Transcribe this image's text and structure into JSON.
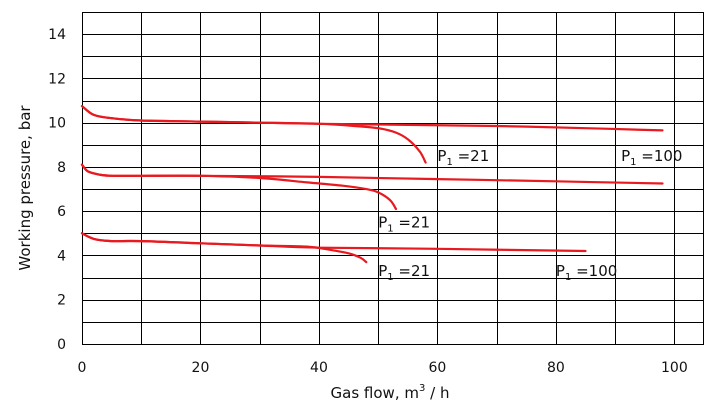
{
  "chart_data": {
    "type": "line",
    "xlabel": {
      "main": "Gas flow, m",
      "sup": "3",
      "rest": " / h"
    },
    "ylabel": "Working pressure, bar",
    "xlim": [
      0,
      105
    ],
    "ylim": [
      0,
      15
    ],
    "x_ticks": [
      0,
      20,
      40,
      60,
      80,
      100
    ],
    "y_ticks": [
      0,
      2,
      4,
      6,
      8,
      10,
      12,
      14
    ],
    "grid": true,
    "grid_x_step": 10,
    "grid_y_step": 1,
    "line_color": "#e8191f",
    "series": [
      {
        "x": [
          0,
          2,
          5,
          10,
          20,
          30,
          40,
          55,
          70,
          85,
          98
        ],
        "y": [
          10.75,
          10.35,
          10.2,
          10.1,
          10.05,
          10.0,
          9.95,
          9.9,
          9.85,
          9.75,
          9.65
        ]
      },
      {
        "x": [
          0,
          2,
          5,
          10,
          20,
          30,
          40,
          46,
          50,
          53,
          55,
          57,
          58
        ],
        "y": [
          10.75,
          10.35,
          10.2,
          10.1,
          10.05,
          10.0,
          9.95,
          9.85,
          9.75,
          9.55,
          9.25,
          8.7,
          8.2
        ]
      },
      {
        "x": [
          0,
          1,
          3,
          5,
          10,
          20,
          40,
          60,
          80,
          98
        ],
        "y": [
          8.1,
          7.8,
          7.65,
          7.6,
          7.6,
          7.6,
          7.55,
          7.45,
          7.35,
          7.25
        ]
      },
      {
        "x": [
          0,
          1,
          3,
          5,
          10,
          20,
          30,
          38,
          44,
          48,
          50,
          52,
          53
        ],
        "y": [
          8.1,
          7.8,
          7.65,
          7.6,
          7.6,
          7.6,
          7.5,
          7.3,
          7.15,
          7.0,
          6.85,
          6.5,
          6.1
        ]
      },
      {
        "x": [
          0,
          2,
          5,
          10,
          20,
          30,
          40,
          60,
          85
        ],
        "y": [
          5.0,
          4.75,
          4.65,
          4.65,
          4.55,
          4.45,
          4.35,
          4.3,
          4.2
        ]
      },
      {
        "x": [
          0,
          2,
          5,
          10,
          20,
          30,
          38,
          42,
          45,
          47,
          48
        ],
        "y": [
          5.0,
          4.75,
          4.65,
          4.65,
          4.55,
          4.45,
          4.4,
          4.25,
          4.1,
          3.9,
          3.7
        ]
      }
    ],
    "annotations": [
      {
        "x": 60,
        "y": 8.5,
        "pre": "P",
        "sub": "1",
        "post": " =21"
      },
      {
        "x": 91,
        "y": 8.5,
        "pre": "P",
        "sub": "1",
        "post": " =100"
      },
      {
        "x": 50,
        "y": 5.5,
        "pre": "P",
        "sub": "1",
        "post": " =21"
      },
      {
        "x": 50,
        "y": 3.3,
        "pre": "P",
        "sub": "1",
        "post": " =21"
      },
      {
        "x": 80,
        "y": 3.3,
        "pre": "P",
        "sub": "1",
        "post": " =100"
      }
    ]
  }
}
